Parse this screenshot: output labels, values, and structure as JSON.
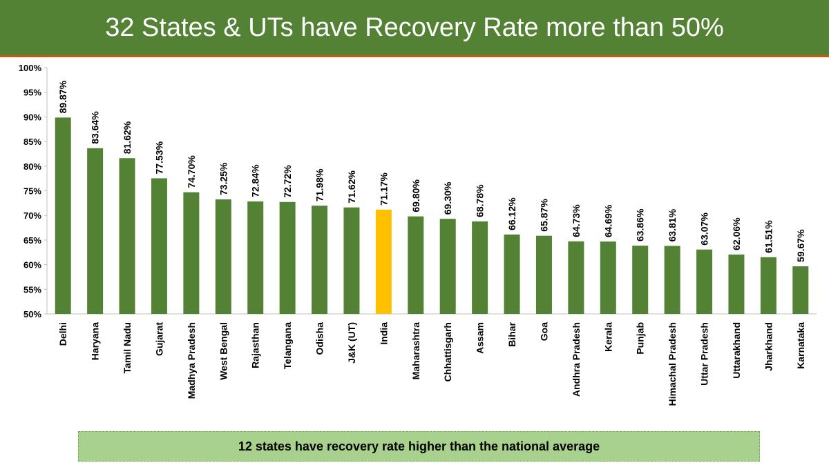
{
  "header": {
    "title": "32 States & UTs have Recovery Rate more than 50%"
  },
  "footer": {
    "note": "12 states have recovery rate higher than the national average"
  },
  "colors": {
    "header_bg": "#548235",
    "bar": "#548235",
    "highlight": "#ffc000",
    "footer_bg": "#a9d18e"
  },
  "chart_data": {
    "type": "bar",
    "title": "32 States & UTs have Recovery Rate more than 50%",
    "xlabel": "",
    "ylabel": "",
    "ylim": [
      50,
      100
    ],
    "y_ticks": [
      "50%",
      "55%",
      "60%",
      "65%",
      "70%",
      "75%",
      "80%",
      "85%",
      "90%",
      "95%",
      "100%"
    ],
    "y_tick_values": [
      50,
      55,
      60,
      65,
      70,
      75,
      80,
      85,
      90,
      95,
      100
    ],
    "highlight_category": "India",
    "grid": false,
    "legend": "none",
    "categories": [
      "Delhi",
      "Haryana",
      "Tamil Nadu",
      "Gujarat",
      "Madhya Pradesh",
      "West Bengal",
      "Rajasthan",
      "Telangana",
      "Odisha",
      "J&K (UT)",
      "India",
      "Maharashtra",
      "Chhattisgarh",
      "Assam",
      "Bihar",
      "Goa",
      "Andhra Pradesh",
      "Kerala",
      "Punjab",
      "Himachal Pradesh",
      "Uttar Pradesh",
      "Uttarakhand",
      "Jharkhand",
      "Karnataka"
    ],
    "values": [
      89.87,
      83.64,
      81.62,
      77.53,
      74.7,
      73.25,
      72.84,
      72.72,
      71.98,
      71.62,
      71.17,
      69.8,
      69.3,
      68.78,
      66.12,
      65.87,
      64.73,
      64.69,
      63.86,
      63.81,
      63.07,
      62.06,
      61.51,
      59.67
    ],
    "data_labels": [
      "89.87%",
      "83.64%",
      "81.62%",
      "77.53%",
      "74.70%",
      "73.25%",
      "72.84%",
      "72.72%",
      "71.98%",
      "71.62%",
      "71.17%",
      "69.80%",
      "69.30%",
      "68.78%",
      "66.12%",
      "65.87%",
      "64.73%",
      "64.69%",
      "63.86%",
      "63.81%",
      "63.07%",
      "62.06%",
      "61.51%",
      "59.67%"
    ]
  }
}
